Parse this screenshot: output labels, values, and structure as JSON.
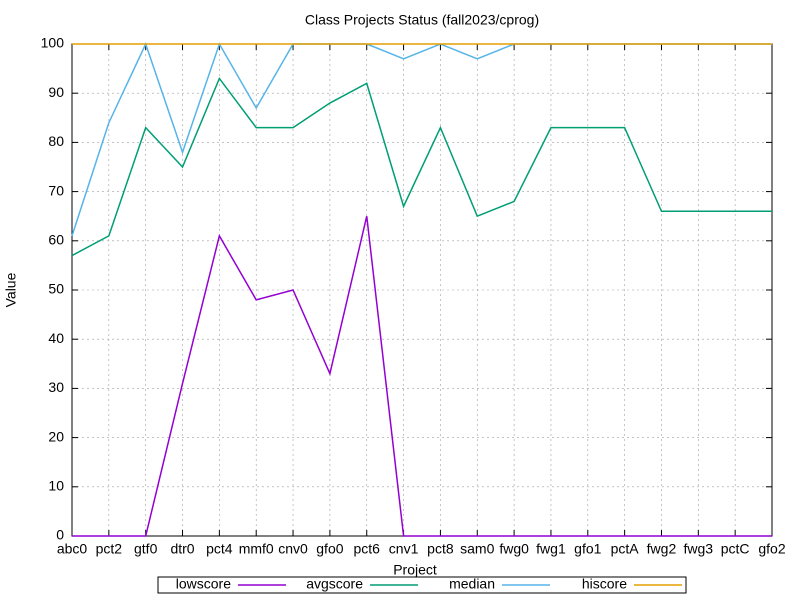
{
  "chart_data": {
    "type": "line",
    "title": "Class Projects Status (fall2023/cprog)",
    "x_label": "Project",
    "y_label": "Value",
    "categories": [
      "abc0",
      "pct2",
      "gtf0",
      "dtr0",
      "pct4",
      "mmf0",
      "cnv0",
      "gfo0",
      "pct6",
      "cnv1",
      "pct8",
      "sam0",
      "fwg0",
      "fwg1",
      "gfo1",
      "pctA",
      "fwg2",
      "fwg3",
      "pctC",
      "gfo2"
    ],
    "series": [
      {
        "name": "lowscore",
        "color": "#9400d3",
        "values": [
          0,
          0,
          0,
          31,
          61,
          48,
          50,
          33,
          65,
          0,
          0,
          0,
          0,
          0,
          0,
          0,
          0,
          0,
          0,
          0
        ]
      },
      {
        "name": "avgscore",
        "color": "#009e73",
        "values": [
          57,
          61,
          83,
          75,
          93,
          83,
          83,
          88,
          92,
          67,
          83,
          65,
          68,
          83,
          83,
          83,
          66,
          66,
          66,
          66
        ]
      },
      {
        "name": "median",
        "color": "#56b4e9",
        "values": [
          61,
          84,
          100,
          78,
          100,
          87,
          100,
          100,
          100,
          97,
          100,
          97,
          100,
          100,
          100,
          100,
          100,
          100,
          100,
          100
        ]
      },
      {
        "name": "hiscore",
        "color": "#e69f00",
        "values": [
          100,
          100,
          100,
          100,
          100,
          100,
          100,
          100,
          100,
          100,
          100,
          100,
          100,
          100,
          100,
          100,
          100,
          100,
          100,
          100
        ]
      }
    ],
    "ylim": [
      0,
      100
    ],
    "yticks": [
      0,
      10,
      20,
      30,
      40,
      50,
      60,
      70,
      80,
      90,
      100
    ],
    "grid": true,
    "legend": "bottom"
  }
}
